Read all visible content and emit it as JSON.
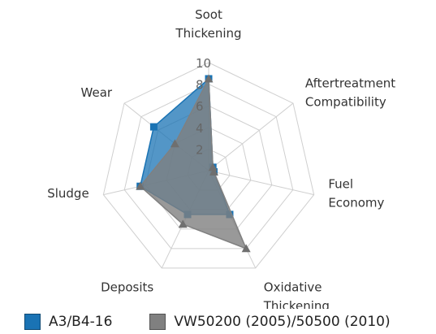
{
  "chart_data": {
    "type": "radar",
    "axes": [
      "Soot Thickening",
      "Aftertreatment Compatibility",
      "Fuel Economy",
      "Oxidative Thickening",
      "Deposits",
      "Sludge",
      "Wear"
    ],
    "axis_label_lines": [
      [
        "Soot",
        "Thickening"
      ],
      [
        "Aftertreatment",
        "Compatibility"
      ],
      [
        "Fuel",
        "Economy"
      ],
      [
        "Oxidative",
        "Thickening"
      ],
      [
        "Deposits"
      ],
      [
        "Sludge"
      ],
      [
        "Wear"
      ]
    ],
    "rlim": [
      0,
      10
    ],
    "r_ticks": [
      2,
      4,
      6,
      8,
      10
    ],
    "grid": true,
    "legend_position": "bottom",
    "series": [
      {
        "name": "A3/B4-16",
        "color": "#1a73b4",
        "fill_opacity": 0.75,
        "marker": "square",
        "values": [
          8.5,
          0.5,
          0.5,
          4.5,
          4.5,
          6.5,
          6.5
        ]
      },
      {
        "name": "VW50200 (2005)/50500 (2010)",
        "color": "#808080",
        "fill_opacity": 0.8,
        "marker": "triangle",
        "values": [
          8.5,
          0.5,
          0.5,
          8.0,
          5.5,
          6.5,
          4.0
        ]
      }
    ]
  }
}
